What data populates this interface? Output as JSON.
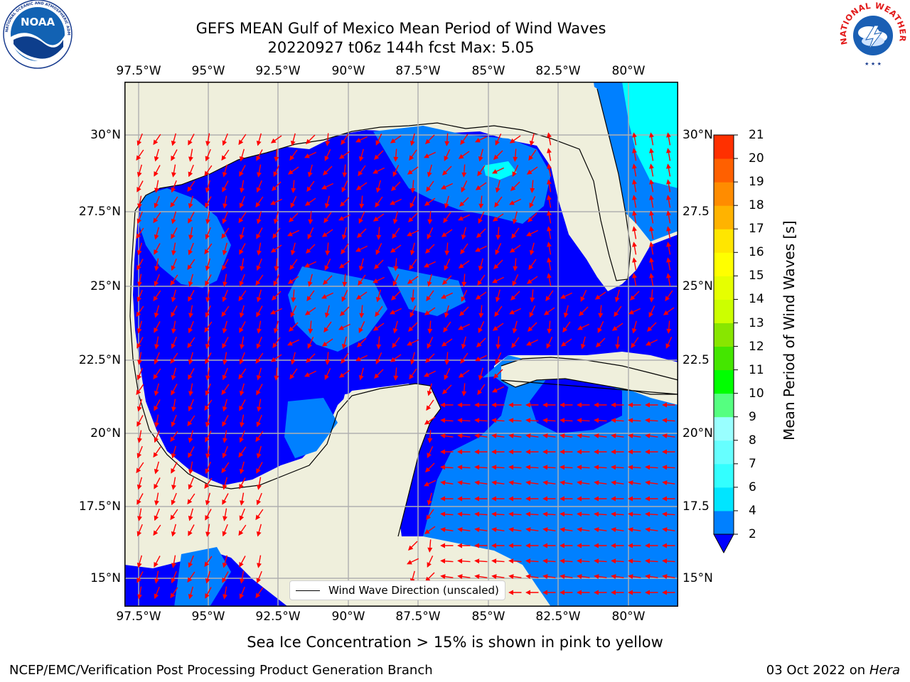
{
  "header": {
    "title_line1": "GEFS MEAN Gulf of Mexico Mean Period of Wind Waves",
    "title_line2": "20220927 t06z 144h fcst   Max: 5.05"
  },
  "logos": {
    "left": {
      "name": "NOAA",
      "ring_text": "NATIONAL OCEANIC AND ATMOSPHERIC ADMINISTRATION • U.S. DEPARTMENT OF COMMERCE"
    },
    "right": {
      "name": "NATIONAL WEATHER SERVICE"
    }
  },
  "map": {
    "lon_ticks": [
      "97.5°W",
      "95°W",
      "92.5°W",
      "90°W",
      "87.5°W",
      "85°W",
      "82.5°W",
      "80°W"
    ],
    "lat_ticks_left": [
      "30°N",
      "27.5°N",
      "25°N",
      "22.5°N",
      "20°N",
      "17.5°N",
      "15°N"
    ],
    "lat_ticks_right": [
      "30°N",
      "27.5",
      "25°N",
      "22.5",
      "20°N",
      "17.5",
      "15°N"
    ],
    "legend_label": "Wind Wave Direction (unscaled)",
    "colors": {
      "land": "#efefdc",
      "ocean_low": "#0000ff",
      "ocean_mid": "#0080ff",
      "ocean_high": "#00ffff",
      "arrow": "#ff0000",
      "grid": "#b0b0b0"
    }
  },
  "colorbar": {
    "label": "Mean Period of Wind Waves [s]",
    "tick_labels": [
      "2",
      "4",
      "6",
      "7",
      "8",
      "9",
      "10",
      "11",
      "12",
      "13",
      "14",
      "15",
      "16",
      "17",
      "18",
      "19",
      "20",
      "21"
    ],
    "colors": [
      "#0080ff",
      "#00e5ff",
      "#33ffff",
      "#66ffff",
      "#99ffff",
      "#55ff80",
      "#00ff00",
      "#44e600",
      "#88e600",
      "#ccff00",
      "#e6ff00",
      "#ffff00",
      "#ffe600",
      "#ffb300",
      "#ff8c00",
      "#ff6000",
      "#ff3000",
      "#ff0000"
    ],
    "extend_color": "#0000ff"
  },
  "footer": {
    "sea_ice_note": "Sea Ice Concentration > 15% is shown in pink to yellow",
    "left": "NCEP/EMC/Verification Post Processing Product Generation Branch",
    "right_date": "03 Oct 2022 on ",
    "right_machine": "Hera"
  }
}
